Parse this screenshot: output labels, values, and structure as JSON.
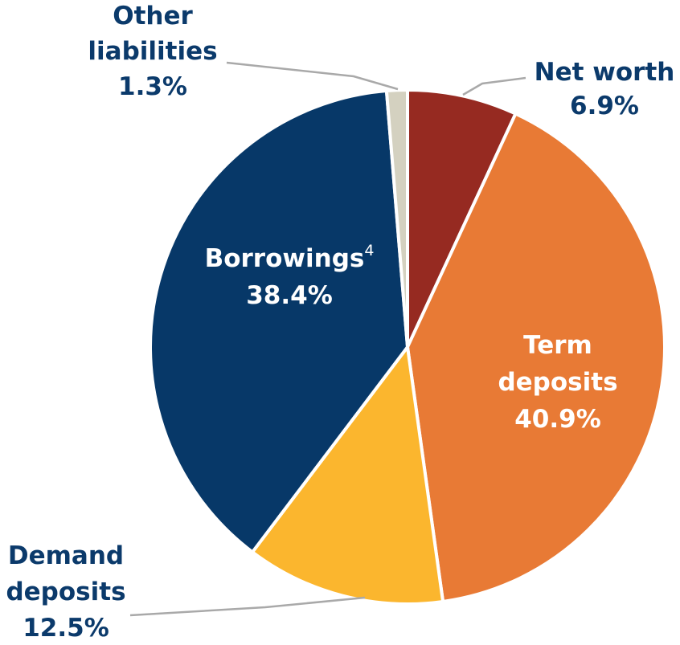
{
  "chart_data": {
    "type": "pie",
    "title": "",
    "start_angle_deg": 0,
    "direction": "clockwise",
    "colors": {
      "net_worth": "#962A21",
      "term_deposits": "#E87A35",
      "demand_deposits": "#FBB62E",
      "borrowings": "#073868",
      "other_liabilities": "#D4D1C0",
      "outside_label": "#0B3A6B",
      "inside_label": "#ffffff",
      "leader_line": "#A9A9A9"
    },
    "slices": [
      {
        "key": "net_worth",
        "label_lines": [
          "Net worth"
        ],
        "value": 6.9,
        "value_label": "6.9%",
        "label_position": "outside"
      },
      {
        "key": "term_deposits",
        "label_lines": [
          "Term",
          "deposits"
        ],
        "value": 40.9,
        "value_label": "40.9%",
        "label_position": "inside"
      },
      {
        "key": "demand_deposits",
        "label_lines": [
          "Demand",
          "deposits"
        ],
        "value": 12.5,
        "value_label": "12.5%",
        "label_position": "outside"
      },
      {
        "key": "borrowings",
        "label_lines": [
          "Borrowings"
        ],
        "superscript": "4",
        "value": 38.4,
        "value_label": "38.4%",
        "label_position": "inside"
      },
      {
        "key": "other_liabilities",
        "label_lines": [
          "Other",
          "liabilities"
        ],
        "value": 1.3,
        "value_label": "1.3%",
        "label_position": "outside"
      }
    ]
  }
}
